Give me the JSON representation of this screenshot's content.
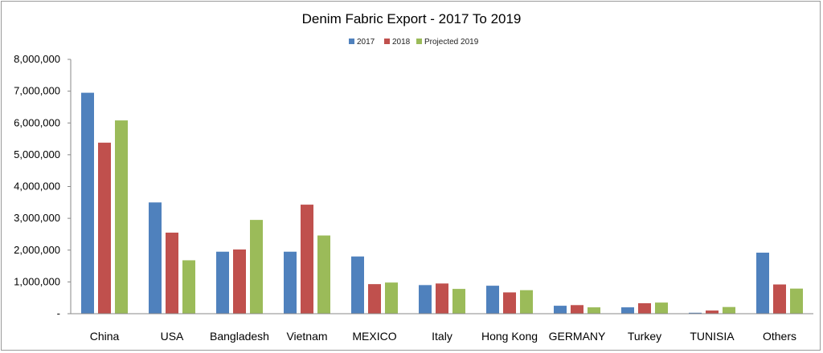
{
  "chart_data": {
    "type": "bar",
    "title": "Denim Fabric Export - 2017 To 2019",
    "xlabel": "",
    "ylabel": "",
    "categories": [
      "China",
      "USA",
      "Bangladesh",
      "Vietnam",
      "MEXICO",
      "Italy",
      "Hong Kong",
      "GERMANY",
      "Turkey",
      "TUNISIA",
      "Others"
    ],
    "series": [
      {
        "name": "2017",
        "color": "#4f81bd",
        "values": [
          6950000,
          3500000,
          1950000,
          1950000,
          1800000,
          900000,
          880000,
          250000,
          200000,
          30000,
          1920000
        ]
      },
      {
        "name": "2018",
        "color": "#c0504d",
        "values": [
          5380000,
          2550000,
          2020000,
          3430000,
          930000,
          950000,
          670000,
          270000,
          330000,
          100000,
          920000
        ]
      },
      {
        "name": "Projected 2019",
        "color": "#9bbb59",
        "values": [
          6080000,
          1680000,
          2950000,
          2460000,
          980000,
          780000,
          740000,
          200000,
          350000,
          210000,
          790000
        ]
      }
    ],
    "ylim": [
      0,
      8000000
    ],
    "yticks": [
      0,
      1000000,
      2000000,
      3000000,
      4000000,
      5000000,
      6000000,
      7000000,
      8000000
    ],
    "ytick_labels": [
      "-",
      "1,000,000",
      "2,000,000",
      "3,000,000",
      "4,000,000",
      "5,000,000",
      "6,000,000",
      "7,000,000",
      "8,000,000"
    ],
    "legend_position": "top-center",
    "grid": false
  }
}
